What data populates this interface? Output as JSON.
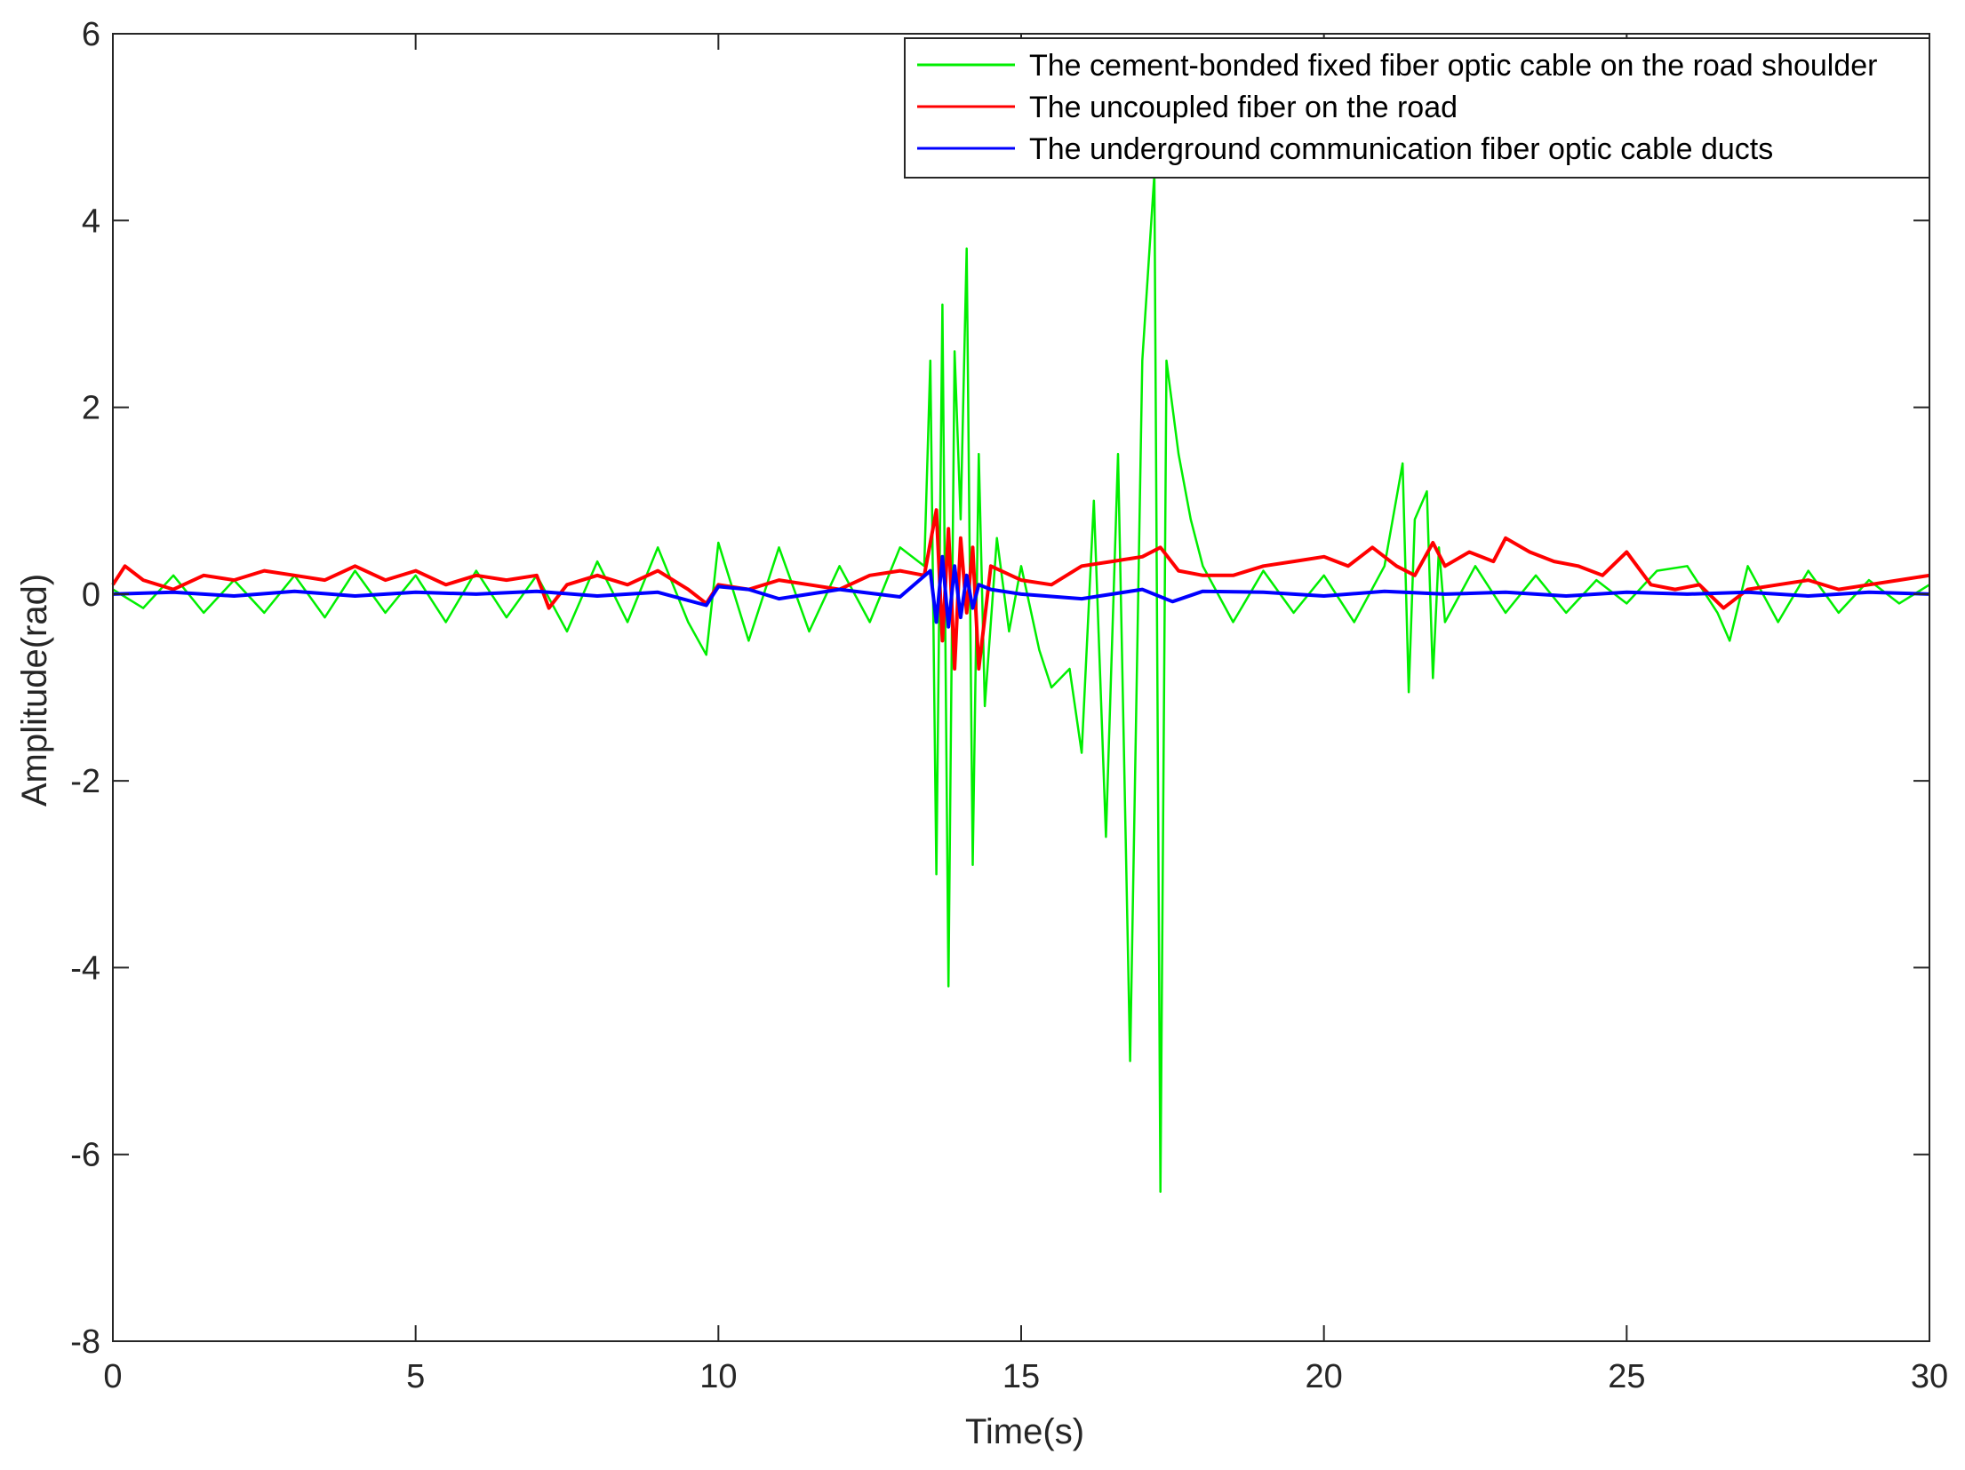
{
  "chart_data": {
    "type": "line",
    "title": "",
    "xlabel": "Time(s)",
    "ylabel": "Amplitude(rad)",
    "xlim": [
      0,
      30
    ],
    "ylim": [
      -8,
      6
    ],
    "xticks": [
      0,
      5,
      10,
      15,
      20,
      25,
      30
    ],
    "yticks": [
      -8,
      -6,
      -4,
      -2,
      0,
      2,
      4,
      6
    ],
    "grid": false,
    "legend_position": "top-right",
    "series": [
      {
        "name": "The cement-bonded fixed fiber optic cable on the road shoulder",
        "color": "#00ee00",
        "x": [
          0,
          0.5,
          1,
          1.5,
          2,
          2.5,
          3,
          3.5,
          4,
          4.5,
          5,
          5.5,
          6,
          6.5,
          7,
          7.5,
          8,
          8.5,
          9,
          9.5,
          9.8,
          10,
          10.5,
          11,
          11.5,
          12,
          12.5,
          13,
          13.4,
          13.5,
          13.6,
          13.7,
          13.8,
          13.9,
          14.0,
          14.1,
          14.2,
          14.3,
          14.4,
          14.6,
          14.8,
          15.0,
          15.3,
          15.5,
          15.8,
          16.0,
          16.2,
          16.4,
          16.6,
          16.8,
          17.0,
          17.1,
          17.2,
          17.3,
          17.4,
          17.6,
          17.8,
          18.0,
          18.5,
          19,
          19.5,
          20,
          20.5,
          21.0,
          21.3,
          21.4,
          21.5,
          21.7,
          21.8,
          21.9,
          22.0,
          22.5,
          23,
          23.5,
          24,
          24.5,
          25,
          25.5,
          26,
          26.5,
          26.7,
          27,
          27.5,
          28,
          28.5,
          29,
          29.5,
          30
        ],
        "y": [
          0.05,
          -0.15,
          0.2,
          -0.2,
          0.15,
          -0.2,
          0.2,
          -0.25,
          0.25,
          -0.2,
          0.2,
          -0.3,
          0.25,
          -0.25,
          0.2,
          -0.4,
          0.35,
          -0.3,
          0.5,
          -0.3,
          -0.65,
          0.55,
          -0.5,
          0.5,
          -0.4,
          0.3,
          -0.3,
          0.5,
          0.3,
          2.5,
          -3.0,
          3.1,
          -4.2,
          2.6,
          0.8,
          3.7,
          -2.9,
          1.5,
          -1.2,
          0.6,
          -0.4,
          0.3,
          -0.6,
          -1.0,
          -0.8,
          -1.7,
          1.0,
          -2.6,
          1.5,
          -5.0,
          2.5,
          3.5,
          4.5,
          -6.4,
          2.5,
          1.5,
          0.8,
          0.3,
          -0.3,
          0.25,
          -0.2,
          0.2,
          -0.3,
          0.3,
          1.4,
          -1.05,
          0.8,
          1.1,
          -0.9,
          0.5,
          -0.3,
          0.3,
          -0.2,
          0.2,
          -0.2,
          0.15,
          -0.1,
          0.25,
          0.3,
          -0.2,
          -0.5,
          0.3,
          -0.3,
          0.25,
          -0.2,
          0.15,
          -0.1,
          0.1
        ]
      },
      {
        "name": "The uncoupled fiber on the road",
        "color": "#ff0000",
        "x": [
          0,
          0.2,
          0.5,
          1,
          1.5,
          2,
          2.5,
          3,
          3.5,
          4,
          4.5,
          5,
          5.5,
          6,
          6.5,
          7,
          7.2,
          7.5,
          8,
          8.5,
          9,
          9.5,
          9.8,
          10,
          10.5,
          11,
          11.5,
          12,
          12.5,
          13,
          13.4,
          13.6,
          13.7,
          13.8,
          13.9,
          14.0,
          14.1,
          14.2,
          14.3,
          14.5,
          15,
          15.5,
          16,
          16.5,
          17,
          17.3,
          17.6,
          18,
          18.5,
          19,
          19.5,
          20,
          20.4,
          20.8,
          21.2,
          21.5,
          21.8,
          22,
          22.4,
          22.8,
          23,
          23.4,
          23.8,
          24.2,
          24.6,
          25,
          25.4,
          25.8,
          26.2,
          26.6,
          27,
          27.5,
          28,
          28.5,
          29,
          29.5,
          30
        ],
        "y": [
          0.1,
          0.3,
          0.15,
          0.05,
          0.2,
          0.15,
          0.25,
          0.2,
          0.15,
          0.3,
          0.15,
          0.25,
          0.1,
          0.2,
          0.15,
          0.2,
          -0.15,
          0.1,
          0.2,
          0.1,
          0.25,
          0.05,
          -0.1,
          0.1,
          0.05,
          0.15,
          0.1,
          0.05,
          0.2,
          0.25,
          0.2,
          0.9,
          -0.5,
          0.7,
          -0.8,
          0.6,
          -0.2,
          0.5,
          -0.8,
          0.3,
          0.15,
          0.1,
          0.3,
          0.35,
          0.4,
          0.5,
          0.25,
          0.2,
          0.2,
          0.3,
          0.35,
          0.4,
          0.3,
          0.5,
          0.3,
          0.2,
          0.55,
          0.3,
          0.45,
          0.35,
          0.6,
          0.45,
          0.35,
          0.3,
          0.2,
          0.45,
          0.1,
          0.05,
          0.1,
          -0.15,
          0.05,
          0.1,
          0.15,
          0.05,
          0.1,
          0.15,
          0.2
        ]
      },
      {
        "name": "The underground communication fiber optic cable ducts",
        "color": "#0000ff",
        "x": [
          0,
          1,
          2,
          3,
          4,
          5,
          6,
          7,
          8,
          9,
          9.8,
          10,
          10.5,
          11,
          12,
          13,
          13.5,
          13.6,
          13.7,
          13.8,
          13.9,
          14.0,
          14.1,
          14.2,
          14.3,
          14.5,
          15,
          16,
          17,
          17.5,
          18,
          19,
          20,
          21,
          22,
          23,
          24,
          25,
          26,
          27,
          28,
          29,
          30
        ],
        "y": [
          0.0,
          0.02,
          -0.02,
          0.03,
          -0.02,
          0.02,
          0.0,
          0.03,
          -0.02,
          0.02,
          -0.12,
          0.08,
          0.05,
          -0.05,
          0.05,
          -0.03,
          0.25,
          -0.3,
          0.4,
          -0.35,
          0.3,
          -0.25,
          0.2,
          -0.15,
          0.1,
          0.05,
          0.0,
          -0.05,
          0.05,
          -0.08,
          0.03,
          0.02,
          -0.02,
          0.03,
          0.0,
          0.02,
          -0.02,
          0.02,
          0.0,
          0.02,
          -0.02,
          0.02,
          0.0
        ]
      }
    ]
  }
}
